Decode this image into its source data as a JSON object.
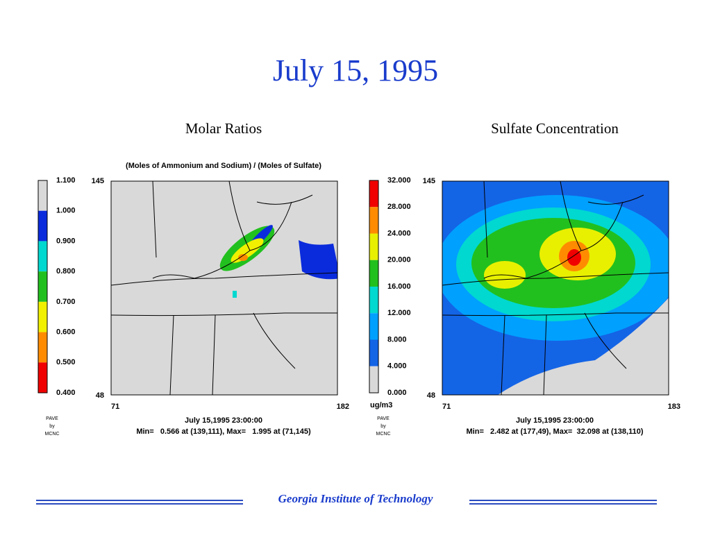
{
  "title": "July 15, 1995",
  "panels": [
    {
      "heading": "Molar Ratios",
      "subtitle": "(Moles of Ammonium and Sodium) / (Moles of Sulfate)",
      "legend": {
        "labels": [
          "1.100",
          "1.000",
          "0.900",
          "0.800",
          "0.700",
          "0.600",
          "0.500",
          "0.400"
        ],
        "colors": [
          "#d9d9d9",
          "#0a2bdc",
          "#00d8d0",
          "#22c01e",
          "#f0f000",
          "#ff8c00",
          "#f00000"
        ]
      },
      "axes": {
        "y_top": "145",
        "y_bottom": "48",
        "x_left": "71",
        "x_right": "182"
      },
      "credit": [
        "PAVE",
        "by",
        "MCNC"
      ],
      "timestamp": "July 15,1995 23:00:00",
      "stats": "Min=   0.566 at (139,111), Max=   1.995 at (71,145)"
    },
    {
      "heading": "Sulfate Concentration",
      "unit": "ug/m3",
      "legend": {
        "labels": [
          "32.000",
          "28.000",
          "24.000",
          "20.000",
          "16.000",
          "12.000",
          "8.000",
          "4.000",
          "0.000"
        ],
        "colors": [
          "#f00000",
          "#ff8c00",
          "#e8f000",
          "#22c01e",
          "#00d8d0",
          "#00a0ff",
          "#1464e6",
          "#d9d9d9"
        ]
      },
      "axes": {
        "y_top": "145",
        "y_bottom": "48",
        "x_left": "71",
        "x_right": "183"
      },
      "credit": [
        "PAVE",
        "by",
        "MCNC"
      ],
      "timestamp": "July 15,1995 23:00:00",
      "stats": "Min=   2.482 at (177,49), Max=  32.098 at (138,110)"
    }
  ],
  "footer": "Georgia Institute of Technology"
}
